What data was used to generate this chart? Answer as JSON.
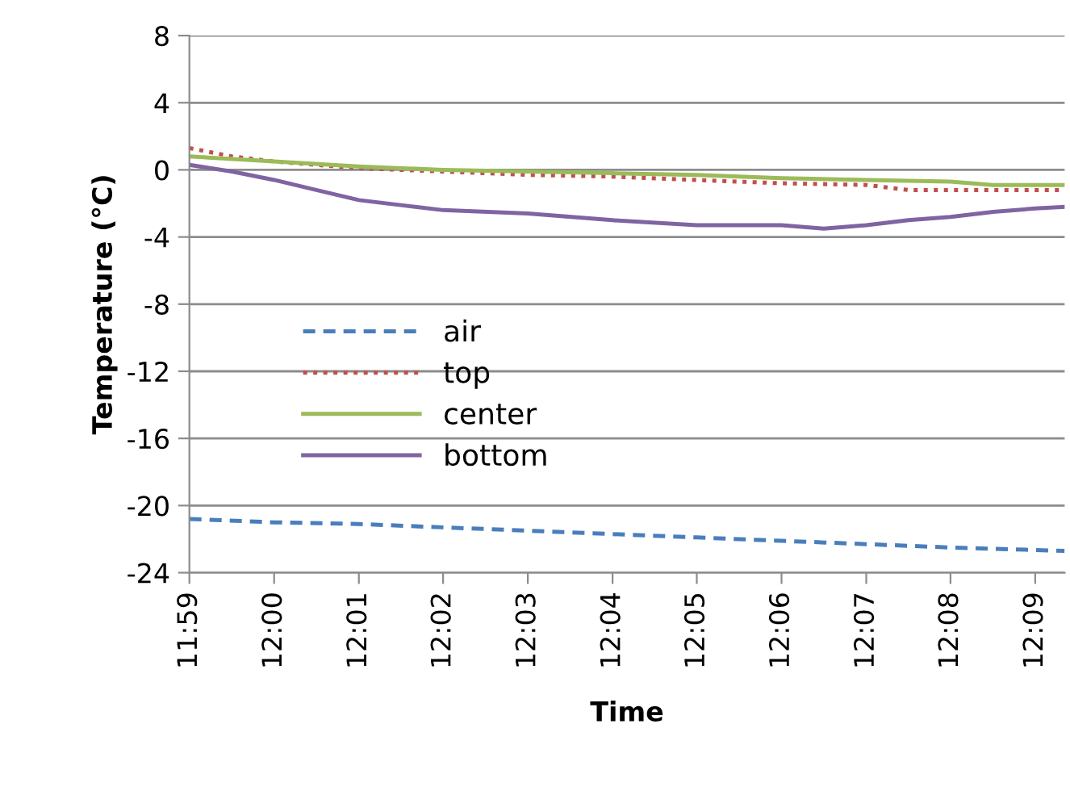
{
  "chart_data": {
    "type": "line",
    "xlabel": "Time",
    "ylabel": "Temperature (°C)",
    "xlim": [
      11.9833,
      12.1558
    ],
    "xticks": [
      {
        "value": 11.9833,
        "label": "11:59"
      },
      {
        "value": 12.0,
        "label": "12:00"
      },
      {
        "value": 12.0167,
        "label": "12:01"
      },
      {
        "value": 12.0333,
        "label": "12:02"
      },
      {
        "value": 12.05,
        "label": "12:03"
      },
      {
        "value": 12.0667,
        "label": "12:04"
      },
      {
        "value": 12.0833,
        "label": "12:05"
      },
      {
        "value": 12.1,
        "label": "12:06"
      },
      {
        "value": 12.1167,
        "label": "12:07"
      },
      {
        "value": 12.1333,
        "label": "12:08"
      },
      {
        "value": 12.15,
        "label": "12:09"
      }
    ],
    "ylim": [
      -24,
      8
    ],
    "yticks": [
      -24,
      -20,
      -16,
      -12,
      -8,
      -4,
      0,
      4,
      8
    ],
    "grid": "y",
    "legend": "center",
    "marker": "none",
    "series": [
      {
        "name": "air",
        "color": "#4a7ebb",
        "line_style": "dashed",
        "x": [
          11.9833,
          12.0,
          12.0167,
          12.0333,
          12.05,
          12.0667,
          12.0833,
          12.1,
          12.1167,
          12.1333,
          12.1558
        ],
        "values": [
          -20.8,
          -21.0,
          -21.1,
          -21.3,
          -21.5,
          -21.7,
          -21.9,
          -22.1,
          -22.3,
          -22.5,
          -22.7
        ]
      },
      {
        "name": "top",
        "color": "#c0504d",
        "line_style": "dotted",
        "x": [
          11.9833,
          11.9917,
          12.0,
          12.0167,
          12.0333,
          12.05,
          12.0667,
          12.0833,
          12.1,
          12.1167,
          12.125,
          12.1558
        ],
        "values": [
          1.3,
          0.8,
          0.5,
          0.1,
          -0.1,
          -0.3,
          -0.4,
          -0.6,
          -0.8,
          -0.9,
          -1.2,
          -1.2
        ]
      },
      {
        "name": "center",
        "color": "#9bbb59",
        "line_style": "solid",
        "x": [
          11.9833,
          12.0,
          12.0167,
          12.0333,
          12.05,
          12.0667,
          12.0833,
          12.1,
          12.1167,
          12.1333,
          12.1417,
          12.1558
        ],
        "values": [
          0.8,
          0.5,
          0.2,
          0.0,
          -0.1,
          -0.2,
          -0.3,
          -0.5,
          -0.6,
          -0.7,
          -0.9,
          -0.9
        ]
      },
      {
        "name": "bottom",
        "color": "#8064a2",
        "line_style": "solid",
        "x": [
          11.9833,
          11.9917,
          12.0,
          12.0083,
          12.0167,
          12.025,
          12.0333,
          12.05,
          12.0667,
          12.0833,
          12.1,
          12.1083,
          12.1167,
          12.125,
          12.1333,
          12.1417,
          12.15,
          12.1558
        ],
        "values": [
          0.3,
          -0.1,
          -0.6,
          -1.2,
          -1.8,
          -2.1,
          -2.4,
          -2.6,
          -3.0,
          -3.3,
          -3.3,
          -3.5,
          -3.3,
          -3.0,
          -2.8,
          -2.5,
          -2.3,
          -2.2
        ]
      }
    ]
  }
}
